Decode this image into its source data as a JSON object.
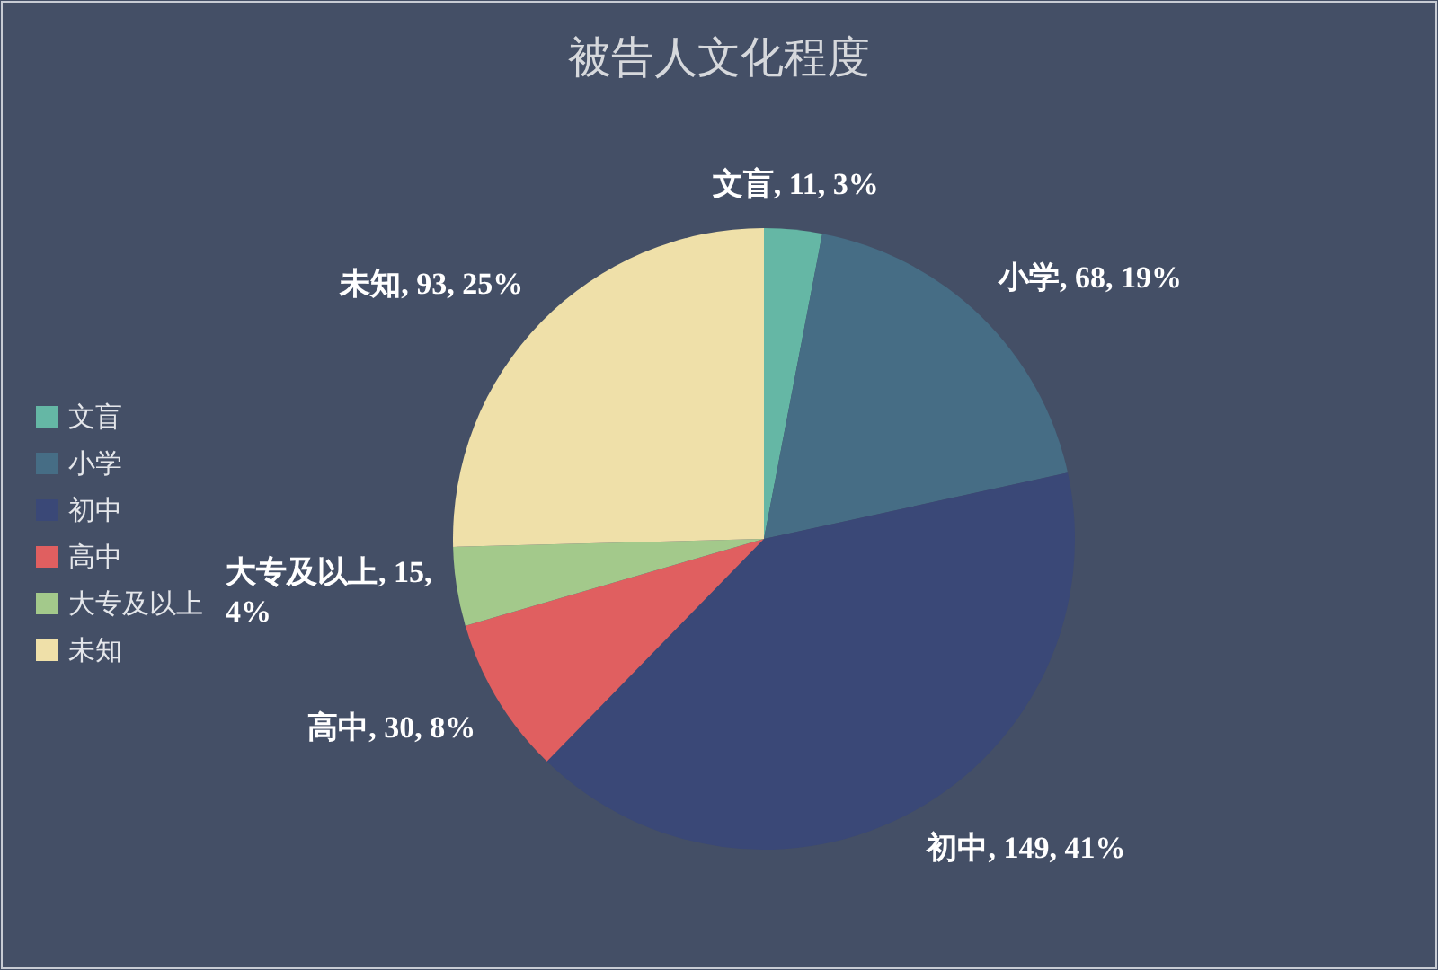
{
  "chart_data": {
    "type": "pie",
    "title": "被告人文化程度",
    "categories": [
      "文盲",
      "小学",
      "初中",
      "高中",
      "大专及以上",
      "未知"
    ],
    "values": [
      11,
      68,
      149,
      30,
      15,
      93
    ],
    "value_labels": [
      "文盲, 11, 3%",
      "小学, 68, 19%",
      "初中, 149, 41%",
      "高中, 30, 8%",
      "大专及以上, 15, 4%",
      "未知, 93, 25%"
    ],
    "colors": [
      "#65b7a5",
      "#466d85",
      "#3a4877",
      "#e05f60",
      "#a3c98b",
      "#efe0a9"
    ],
    "legend": "left"
  }
}
